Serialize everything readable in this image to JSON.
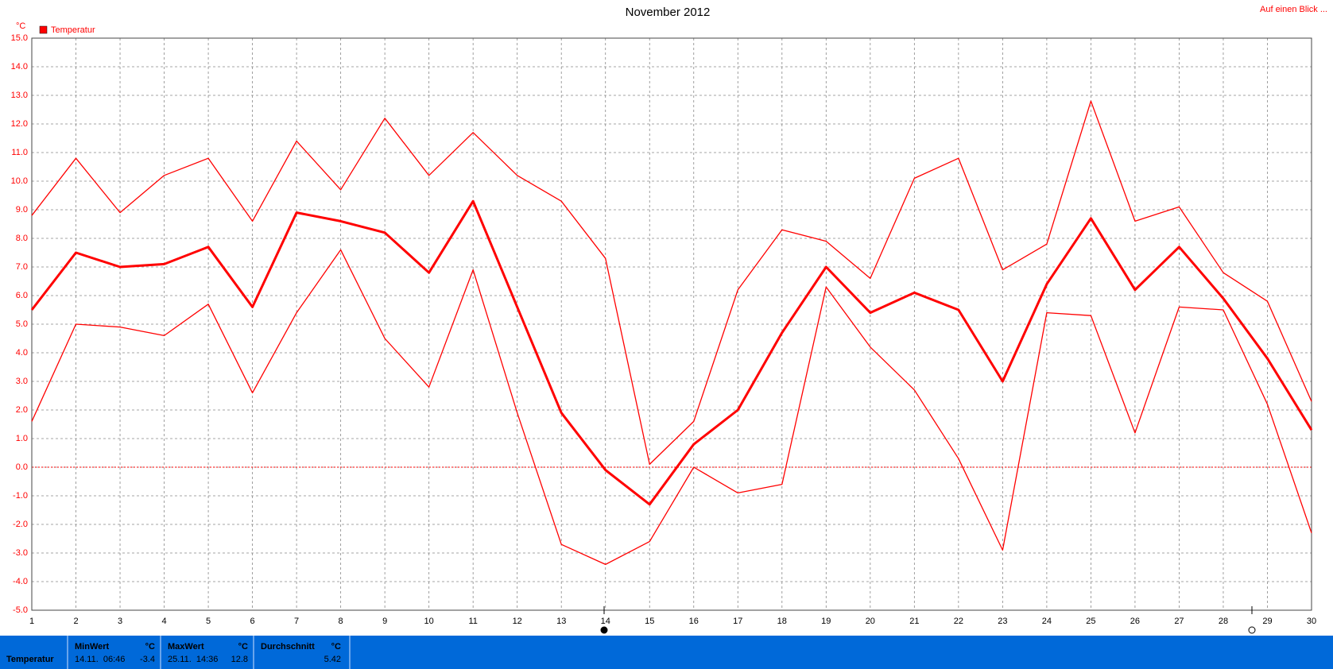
{
  "chart_data": {
    "type": "line",
    "title": "November 2012",
    "y_label": "°C",
    "link": "Auf einen Blick ...",
    "legend": "Temperatur",
    "legend_color": "#ff0000",
    "x": [
      1,
      2,
      3,
      4,
      5,
      6,
      7,
      8,
      9,
      10,
      11,
      12,
      13,
      14,
      15,
      16,
      17,
      18,
      19,
      20,
      21,
      22,
      23,
      24,
      25,
      26,
      27,
      28,
      29,
      30
    ],
    "xlim": [
      1,
      30
    ],
    "xticks": [
      1,
      2,
      3,
      4,
      5,
      6,
      7,
      8,
      9,
      10,
      11,
      12,
      13,
      14,
      15,
      16,
      17,
      18,
      19,
      20,
      21,
      22,
      23,
      24,
      25,
      26,
      27,
      28,
      29,
      30
    ],
    "ylim": [
      -5,
      15
    ],
    "yticks": [
      {
        "value": -5,
        "label": "-5.0"
      },
      {
        "value": -4,
        "label": "-4.0"
      },
      {
        "value": -3,
        "label": "-3.0"
      },
      {
        "value": -2,
        "label": "-2.0"
      },
      {
        "value": -1,
        "label": "-1.0"
      },
      {
        "value": 0,
        "label": "0.0"
      },
      {
        "value": 1,
        "label": "1.0"
      },
      {
        "value": 2,
        "label": "2.0"
      },
      {
        "value": 3,
        "label": "3.0"
      },
      {
        "value": 4,
        "label": "4.0"
      },
      {
        "value": 5,
        "label": "5.0"
      },
      {
        "value": 6,
        "label": "6.0"
      },
      {
        "value": 7,
        "label": "7.0"
      },
      {
        "value": 8,
        "label": "8.0"
      },
      {
        "value": 9,
        "label": "9.0"
      },
      {
        "value": 10,
        "label": "10.0"
      },
      {
        "value": 11,
        "label": "11.0"
      },
      {
        "value": 12,
        "label": "12.0"
      },
      {
        "value": 13,
        "label": "13.0"
      },
      {
        "value": 14,
        "label": "14.0"
      },
      {
        "value": 15,
        "label": "15.0"
      }
    ],
    "grid": true,
    "series": [
      {
        "color": "#ff0000",
        "line_width": 1.3,
        "values": [
          8.8,
          10.8,
          8.9,
          10.2,
          10.8,
          8.6,
          11.4,
          9.7,
          12.2,
          10.2,
          11.7,
          10.2,
          9.3,
          7.3,
          0.1,
          1.6,
          6.2,
          8.3,
          7.9,
          6.6,
          10.1,
          10.8,
          6.9,
          7.8,
          12.8,
          8.6,
          9.1,
          6.8,
          5.8,
          2.3
        ]
      },
      {
        "color": "#ff0000",
        "line_width": 3,
        "values": [
          5.5,
          7.5,
          7.0,
          7.1,
          7.7,
          5.6,
          8.9,
          8.6,
          8.2,
          6.8,
          9.3,
          5.6,
          1.9,
          -0.1,
          -1.3,
          0.8,
          2.0,
          4.7,
          7.0,
          5.4,
          6.1,
          5.5,
          3.0,
          6.4,
          8.7,
          6.2,
          7.7,
          5.9,
          3.8,
          1.3
        ]
      },
      {
        "color": "#ff0000",
        "line_width": 1.3,
        "values": [
          1.6,
          5.0,
          4.9,
          4.6,
          5.7,
          2.6,
          5.4,
          7.6,
          4.5,
          2.8,
          6.9,
          1.9,
          -2.7,
          -3.4,
          -2.6,
          0.0,
          -0.9,
          -0.6,
          6.3,
          4.2,
          2.7,
          0.3,
          -2.9,
          5.4,
          5.3,
          1.2,
          5.6,
          5.5,
          2.2,
          -2.3
        ]
      }
    ]
  },
  "summary": {
    "row_label": "Temperatur",
    "columns": [
      {
        "header": "MinWert",
        "unit": "°C",
        "time": "14.11.  06:46",
        "value": -3.4
      },
      {
        "header": "MaxWert",
        "unit": "°C",
        "time": "25.11.  14:36",
        "value": 12.8
      },
      {
        "header": "Durchschnitt",
        "unit": "°C",
        "time": "",
        "value": 5.42
      }
    ]
  }
}
